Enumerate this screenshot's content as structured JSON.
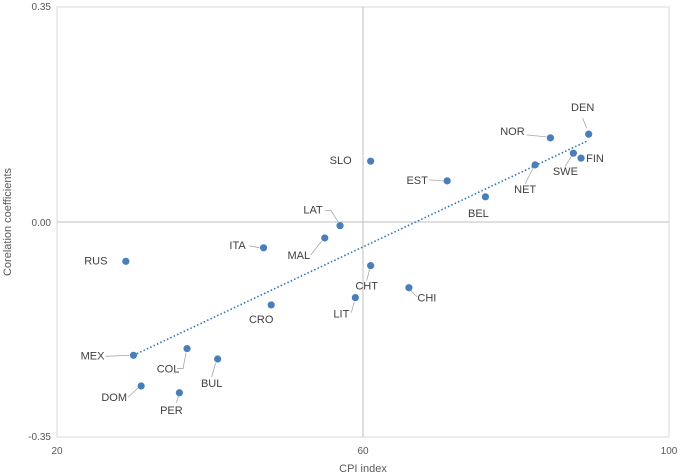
{
  "chart_data": {
    "type": "scatter",
    "xlabel": "CPI index",
    "ylabel": "Corelation coefficients",
    "xlim": [
      20,
      100
    ],
    "ylim": [
      -0.35,
      0.35
    ],
    "x_ticks": [
      {
        "v": 20,
        "label": "20"
      },
      {
        "v": 60,
        "label": "60"
      },
      {
        "v": 100,
        "label": "100"
      }
    ],
    "y_ticks": [
      {
        "v": 0.35,
        "label": "0.35"
      },
      {
        "v": 0.0,
        "label": "0.00"
      },
      {
        "v": -0.35,
        "label": "-0.35"
      }
    ],
    "point_color": "#4a7ebb",
    "trend_color": "#2e75b6",
    "trendline": {
      "type": "linear",
      "from": [
        30,
        -0.217
      ],
      "to": [
        89.5,
        0.133
      ]
    },
    "points": [
      {
        "label": "DEN",
        "x": 89.5,
        "y": 0.143
      },
      {
        "label": "NOR",
        "x": 84.5,
        "y": 0.137
      },
      {
        "label": "FIN",
        "x": 88.5,
        "y": 0.104
      },
      {
        "label": "SWE",
        "x": 87.5,
        "y": 0.112
      },
      {
        "label": "NET",
        "x": 82.5,
        "y": 0.093
      },
      {
        "label": "BEL",
        "x": 76.0,
        "y": 0.041
      },
      {
        "label": "EST",
        "x": 71.0,
        "y": 0.067
      },
      {
        "label": "SLO",
        "x": 61.0,
        "y": 0.099
      },
      {
        "label": "LAT",
        "x": 57.0,
        "y": -0.006
      },
      {
        "label": "MAL",
        "x": 55.0,
        "y": -0.026
      },
      {
        "label": "ITA",
        "x": 47.0,
        "y": -0.042
      },
      {
        "label": "RUS",
        "x": 29.0,
        "y": -0.064
      },
      {
        "label": "CHT",
        "x": 61.0,
        "y": -0.071
      },
      {
        "label": "CHI",
        "x": 66.0,
        "y": -0.107
      },
      {
        "label": "LIT",
        "x": 59.0,
        "y": -0.123
      },
      {
        "label": "CRO",
        "x": 48.0,
        "y": -0.135
      },
      {
        "label": "MEX",
        "x": 30.0,
        "y": -0.217
      },
      {
        "label": "COL",
        "x": 37.0,
        "y": -0.206
      },
      {
        "label": "BUL",
        "x": 41.0,
        "y": -0.223
      },
      {
        "label": "DOM",
        "x": 31.0,
        "y": -0.267
      },
      {
        "label": "PER",
        "x": 36.0,
        "y": -0.278
      }
    ]
  }
}
